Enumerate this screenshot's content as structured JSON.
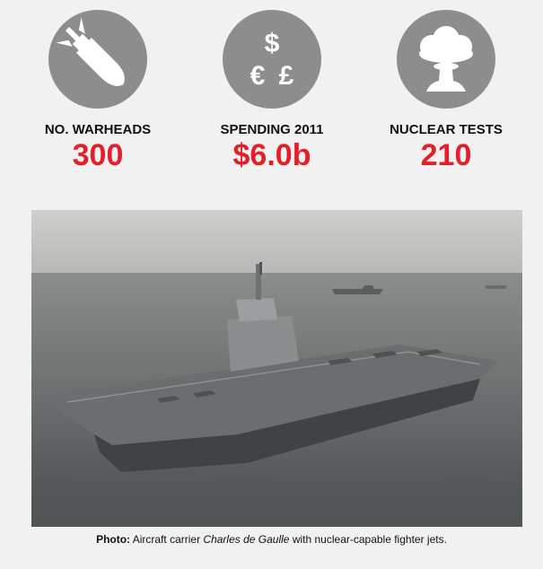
{
  "stats": [
    {
      "label": "NO. WARHEADS",
      "value": "300"
    },
    {
      "label": "SPENDING 2011",
      "value": "$6.0b",
      "icon_symbols": [
        "$",
        "€",
        "£"
      ]
    },
    {
      "label": "NUCLEAR TESTS",
      "value": "210"
    }
  ],
  "caption": {
    "prefix": "Photo:",
    "text_before": "Aircraft carrier",
    "ship_name": "Charles de Gaulle",
    "text_after": "with nuclear-capable fighter jets."
  }
}
